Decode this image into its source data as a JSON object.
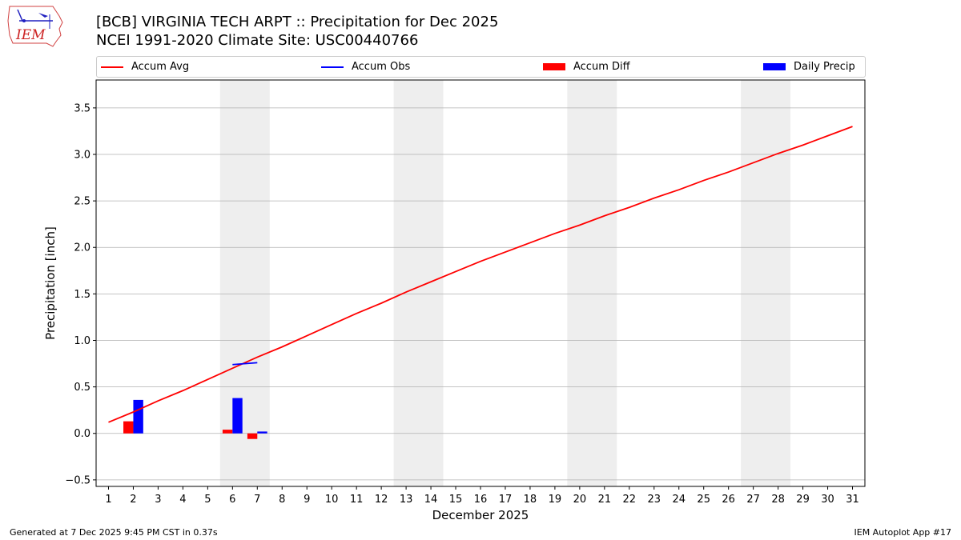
{
  "header": {
    "title_line1": "[BCB] VIRGINIA TECH ARPT :: Precipitation for Dec 2025",
    "title_line2": "NCEI 1991-2020 Climate Site: USC00440766",
    "logo_text": "IEM"
  },
  "footer": {
    "left": "Generated at 7 Dec 2025 9:45 PM CST in 0.37s",
    "right": "IEM Autoplot App #17"
  },
  "colors": {
    "accum_avg": "#ff0000",
    "accum_obs": "#0000ff",
    "accum_diff": "#ff0000",
    "daily_precip": "#0000ff",
    "weekend_shade": "#eeeeee",
    "grid": "#b0b0b0"
  },
  "legend": [
    {
      "label": "Accum Avg",
      "kind": "line",
      "color": "#ff0000"
    },
    {
      "label": "Accum Obs",
      "kind": "line",
      "color": "#0000ff"
    },
    {
      "label": "Accum Diff",
      "kind": "rect",
      "color": "#ff0000"
    },
    {
      "label": "Daily Precip",
      "kind": "rect",
      "color": "#0000ff"
    }
  ],
  "chart_data": {
    "type": "bar+line",
    "xlabel": "December 2025",
    "ylabel": "Precipitation [inch]",
    "xlim": [
      0.5,
      31.5
    ],
    "ylim": [
      -0.57,
      3.8
    ],
    "yticks": [
      -0.5,
      0.0,
      0.5,
      1.0,
      1.5,
      2.0,
      2.5,
      3.0,
      3.5
    ],
    "ytick_labels": [
      "−0.5",
      "0.0",
      "0.5",
      "1.0",
      "1.5",
      "2.0",
      "2.5",
      "3.0",
      "3.5"
    ],
    "xticks": [
      1,
      2,
      3,
      4,
      5,
      6,
      7,
      8,
      9,
      10,
      11,
      12,
      13,
      14,
      15,
      16,
      17,
      18,
      19,
      20,
      21,
      22,
      23,
      24,
      25,
      26,
      27,
      28,
      29,
      30,
      31
    ],
    "grid": "horizontal",
    "weekend_spans": [
      [
        5.5,
        7.5
      ],
      [
        12.5,
        14.5
      ],
      [
        19.5,
        21.5
      ],
      [
        26.5,
        28.5
      ]
    ],
    "series": [
      {
        "name": "Accum Avg",
        "kind": "line",
        "x": [
          1,
          2,
          3,
          4,
          5,
          6,
          7,
          8,
          9,
          10,
          11,
          12,
          13,
          14,
          15,
          16,
          17,
          18,
          19,
          20,
          21,
          22,
          23,
          24,
          25,
          26,
          27,
          28,
          29,
          30,
          31
        ],
        "values": [
          0.12,
          0.23,
          0.35,
          0.46,
          0.58,
          0.7,
          0.82,
          0.93,
          1.05,
          1.17,
          1.29,
          1.4,
          1.52,
          1.63,
          1.74,
          1.85,
          1.95,
          2.05,
          2.15,
          2.24,
          2.34,
          2.43,
          2.53,
          2.62,
          2.72,
          2.81,
          2.91,
          3.01,
          3.1,
          3.2,
          3.3
        ]
      },
      {
        "name": "Accum Obs",
        "kind": "line",
        "x": [
          6,
          7
        ],
        "values": [
          0.74,
          0.76
        ]
      },
      {
        "name": "Accum Diff",
        "kind": "bar",
        "x": [
          2,
          6,
          7
        ],
        "values": [
          0.13,
          0.04,
          -0.06
        ]
      },
      {
        "name": "Daily Precip",
        "kind": "bar",
        "x": [
          2,
          6,
          7
        ],
        "values": [
          0.36,
          0.38,
          0.02
        ]
      }
    ]
  }
}
